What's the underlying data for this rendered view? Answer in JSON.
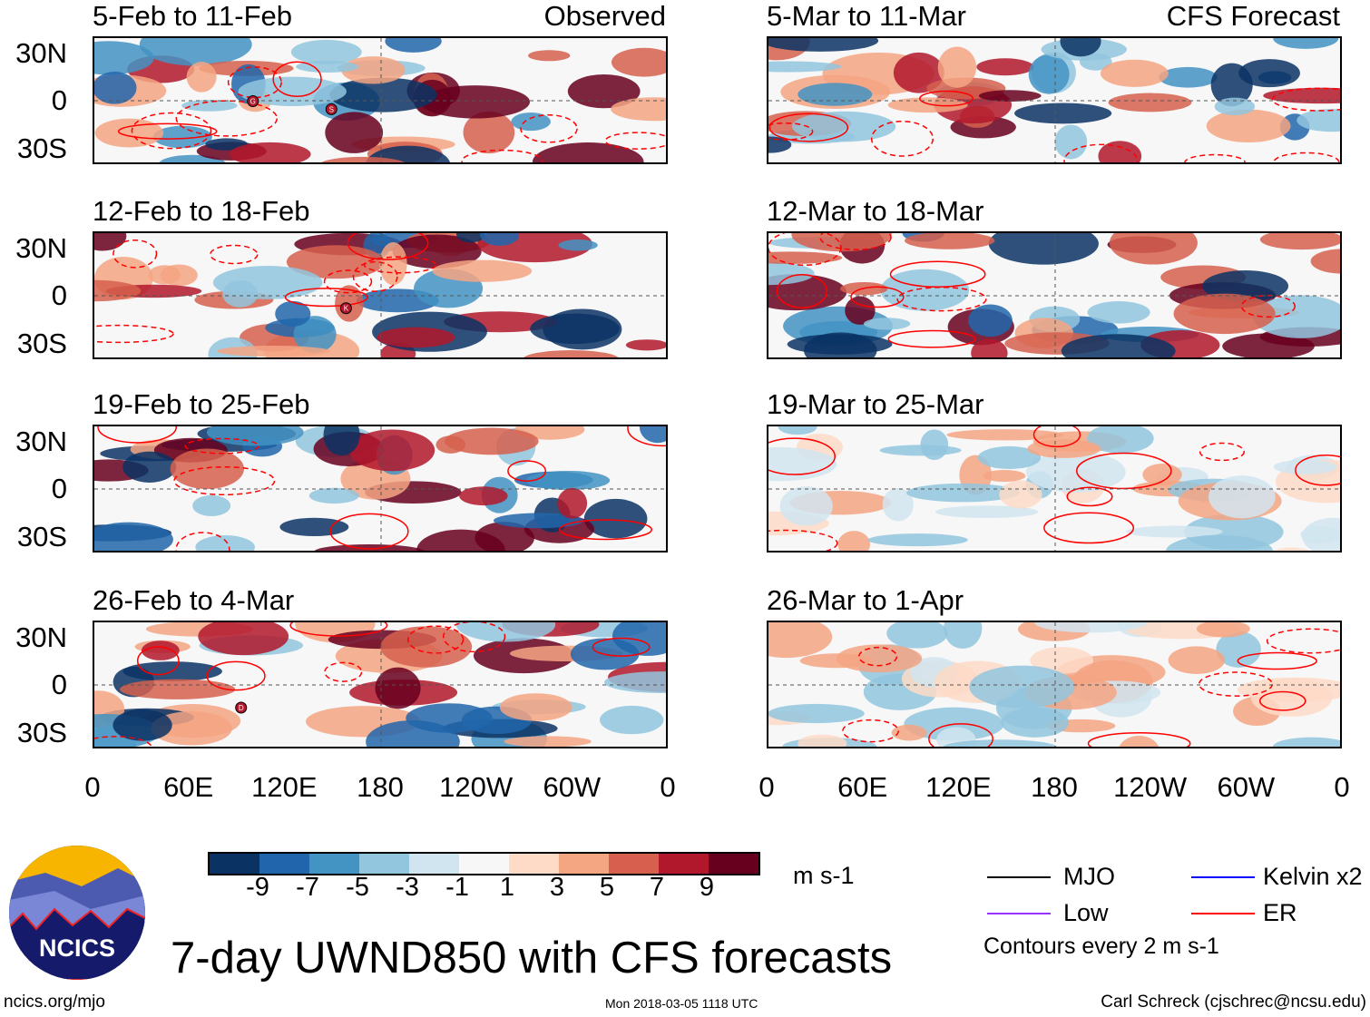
{
  "chart_data": {
    "type": "heatmap",
    "title": "7-day UWND850 with CFS forecasts",
    "variable": "850-hPa zonal wind anomaly",
    "units": "m s-1",
    "column_labels": {
      "left": "Observed",
      "right": "CFS Forecast"
    },
    "ytick_labels": [
      "30N",
      "0",
      "30S"
    ],
    "xtick_labels": [
      "0",
      "60E",
      "120E",
      "180",
      "120W",
      "60W",
      "0"
    ],
    "colorbar": {
      "levels": [
        "-9",
        "-7",
        "-5",
        "-3",
        "-1",
        "1",
        "3",
        "5",
        "7",
        "9"
      ],
      "colors": [
        "#0a3364",
        "#2166ac",
        "#4393c3",
        "#92c5de",
        "#d1e5f0",
        "#f7f7f7",
        "#fddbc7",
        "#f4a582",
        "#d6604d",
        "#b2182b",
        "#67001f"
      ]
    },
    "panels": [
      {
        "title": "5-Feb to 11-Feb",
        "source": "Observed",
        "markers": [
          "S",
          "G"
        ]
      },
      {
        "title": "12-Feb to 18-Feb",
        "source": "Observed",
        "markers": [
          "K"
        ]
      },
      {
        "title": "19-Feb to 25-Feb",
        "source": "Observed",
        "markers": []
      },
      {
        "title": "26-Feb to 4-Mar",
        "source": "Observed",
        "markers": [
          "D"
        ]
      },
      {
        "title": "5-Mar to 11-Mar",
        "source": "CFS Forecast",
        "markers": []
      },
      {
        "title": "12-Mar to 18-Mar",
        "source": "CFS Forecast",
        "markers": []
      },
      {
        "title": "19-Mar to 25-Mar",
        "source": "CFS Forecast",
        "markers": []
      },
      {
        "title": "26-Mar to 1-Apr",
        "source": "CFS Forecast",
        "markers": []
      }
    ],
    "legend": [
      {
        "label": "MJO",
        "color": "#000000"
      },
      {
        "label": "Kelvin x2",
        "color": "#0000ff"
      },
      {
        "label": "Low",
        "color": "#9933ff"
      },
      {
        "label": "ER",
        "color": "#ff0000"
      }
    ],
    "contour_note": "Contours every 2 m s-1"
  },
  "footer": {
    "url": "ncics.org/mjo",
    "timestamp": "Mon 2018-03-05 1118 UTC",
    "author": "Carl Schreck (cjschrec@ncsu.edu)",
    "logo_text": "NCICS"
  }
}
